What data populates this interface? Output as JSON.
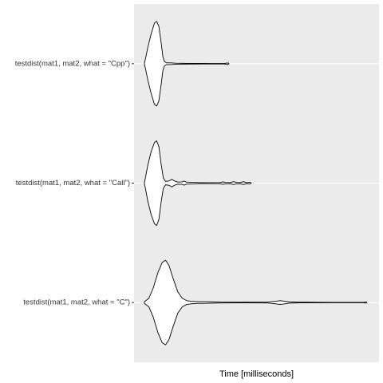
{
  "chart_data": {
    "type": "violin",
    "orientation": "horizontal",
    "title": "",
    "xlabel": "Time [milliseconds]",
    "ylabel": "",
    "x_tick_labels": [],
    "grid": true,
    "legend": "none",
    "colors": {
      "panel": "#EBEBEB",
      "grid": "#FFFFFF",
      "outline": "#000000",
      "fill": "#FFFFFF"
    },
    "x_range": [
      0,
      100
    ],
    "categories": [
      "testdist(mat1, mat2, what = \"Cpp\")",
      "testdist(mat1, mat2, what = \"Call\")",
      "testdist(mat1, mat2, what = \"C\")"
    ],
    "series": [
      {
        "category": "testdist(mat1, mat2, what = \"Cpp\")",
        "density": [
          [
            0.0,
            0.02
          ],
          [
            0.5,
            0.12
          ],
          [
            1.5,
            0.38
          ],
          [
            3,
            0.7
          ],
          [
            4.5,
            0.96
          ],
          [
            5.5,
            1.0
          ],
          [
            6.5,
            0.88
          ],
          [
            7.5,
            0.5
          ],
          [
            8.3,
            0.16
          ],
          [
            9,
            0.05
          ],
          [
            10,
            0.02
          ],
          [
            12,
            0.02
          ],
          [
            14,
            0.012
          ],
          [
            20,
            0.008
          ],
          [
            30,
            0.006
          ],
          [
            36,
            0.006
          ],
          [
            37.5,
            0.02
          ],
          [
            38,
            0.0
          ]
        ]
      },
      {
        "category": "testdist(mat1, mat2, what = \"Call\")",
        "density": [
          [
            0.0,
            0.02
          ],
          [
            0.5,
            0.14
          ],
          [
            1.5,
            0.42
          ],
          [
            3,
            0.74
          ],
          [
            4.5,
            0.96
          ],
          [
            5.5,
            1.0
          ],
          [
            6.5,
            0.86
          ],
          [
            7.5,
            0.45
          ],
          [
            8.5,
            0.12
          ],
          [
            9.5,
            0.04
          ],
          [
            11,
            0.05
          ],
          [
            12.3,
            0.09
          ],
          [
            13.5,
            0.05
          ],
          [
            15,
            0.025
          ],
          [
            17,
            0.03
          ],
          [
            17.8,
            0.05
          ],
          [
            18.8,
            0.025
          ],
          [
            25,
            0.01
          ],
          [
            34,
            0.012
          ],
          [
            35.2,
            0.03
          ],
          [
            36.5,
            0.015
          ],
          [
            38.5,
            0.012
          ],
          [
            40,
            0.035
          ],
          [
            41.5,
            0.015
          ],
          [
            43,
            0.012
          ],
          [
            44.5,
            0.035
          ],
          [
            46,
            0.01
          ],
          [
            47.5,
            0.02
          ],
          [
            48,
            0.0
          ]
        ]
      },
      {
        "category": "testdist(mat1, mat2, what = \"C\")",
        "density": [
          [
            0.0,
            0.02
          ],
          [
            2,
            0.1
          ],
          [
            4,
            0.35
          ],
          [
            6,
            0.7
          ],
          [
            8,
            0.95
          ],
          [
            9.5,
            1.0
          ],
          [
            11,
            0.88
          ],
          [
            13,
            0.55
          ],
          [
            15,
            0.25
          ],
          [
            17,
            0.1
          ],
          [
            19,
            0.045
          ],
          [
            21,
            0.03
          ],
          [
            24,
            0.02
          ],
          [
            27,
            0.02
          ],
          [
            31,
            0.015
          ],
          [
            35,
            0.01
          ],
          [
            45,
            0.008
          ],
          [
            55,
            0.01
          ],
          [
            57,
            0.02
          ],
          [
            59,
            0.03
          ],
          [
            61,
            0.045
          ],
          [
            63,
            0.03
          ],
          [
            65,
            0.015
          ],
          [
            70,
            0.008
          ],
          [
            85,
            0.005
          ],
          [
            98.5,
            0.005
          ],
          [
            99.5,
            0.015
          ],
          [
            100,
            0.0
          ]
        ]
      }
    ]
  }
}
